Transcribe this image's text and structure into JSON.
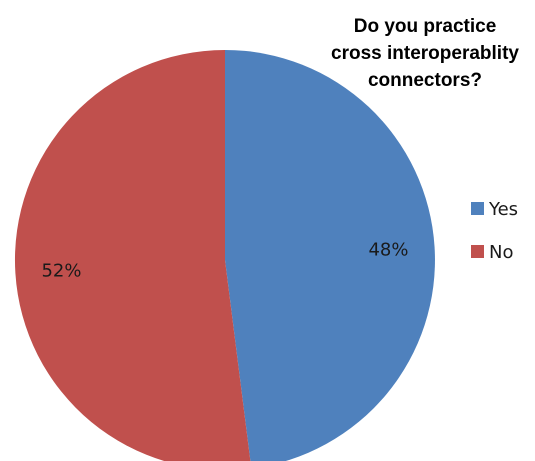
{
  "chart_data": {
    "type": "pie",
    "title_lines": [
      "Do you practice",
      "cross interoperablity",
      "connectors?"
    ],
    "slices": [
      {
        "label": "Yes",
        "value": 48,
        "display": "48%",
        "color": "#4f81bd"
      },
      {
        "label": "No",
        "value": 52,
        "display": "52%",
        "color": "#c0504d"
      }
    ],
    "legend": {
      "position": "right",
      "entries": [
        "Yes",
        "No"
      ]
    },
    "start_angle_deg": 0,
    "direction": "clockwise"
  }
}
